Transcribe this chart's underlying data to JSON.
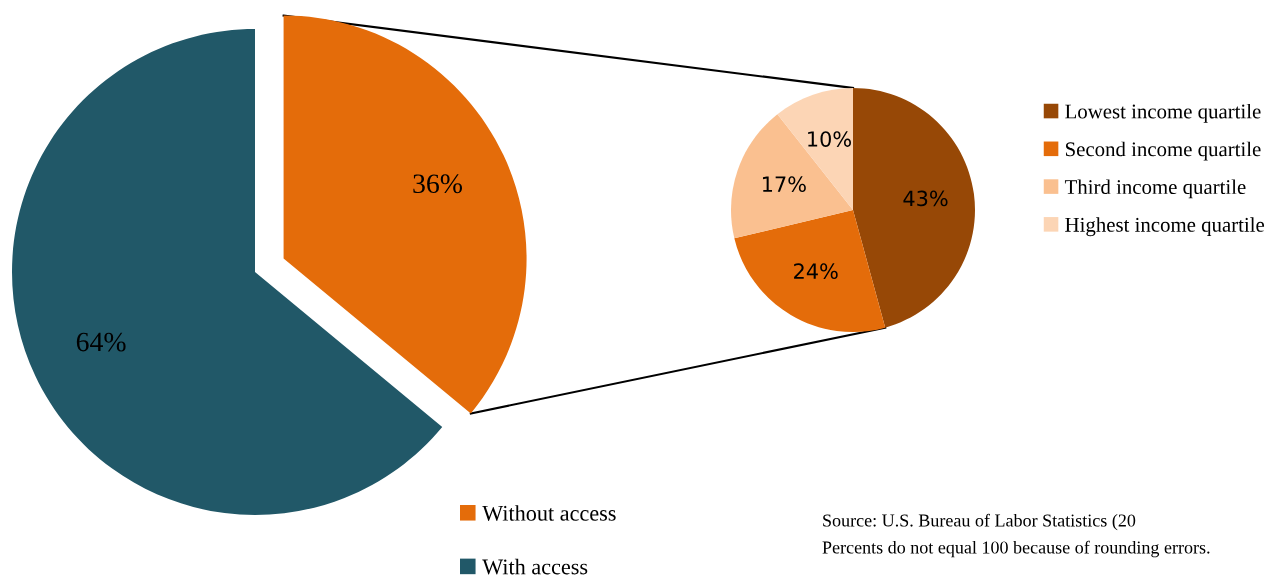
{
  "chart_data": [
    {
      "type": "pie",
      "categories": [
        "Without access",
        "With access"
      ],
      "values": [
        36,
        64
      ],
      "colors": [
        "#e46c0a",
        "#215868"
      ],
      "value_labels": [
        "36%",
        "64%"
      ],
      "legend": "bottom"
    },
    {
      "type": "pie",
      "categories": [
        "Lowest income quartile",
        "Second income quartile",
        "Third income quartile",
        "Highest income quartile"
      ],
      "values": [
        43,
        24,
        17,
        10
      ],
      "colors": [
        "#974806",
        "#e46c0a",
        "#fac090",
        "#fcd5b5"
      ],
      "value_labels": [
        "43%",
        "24%",
        "17%",
        "10%"
      ],
      "legend": "right",
      "annotations": [
        "Source: U.S. Bureau of Labor Statistics (20",
        "Percents do not equal 100 because of rounding errors."
      ]
    }
  ]
}
